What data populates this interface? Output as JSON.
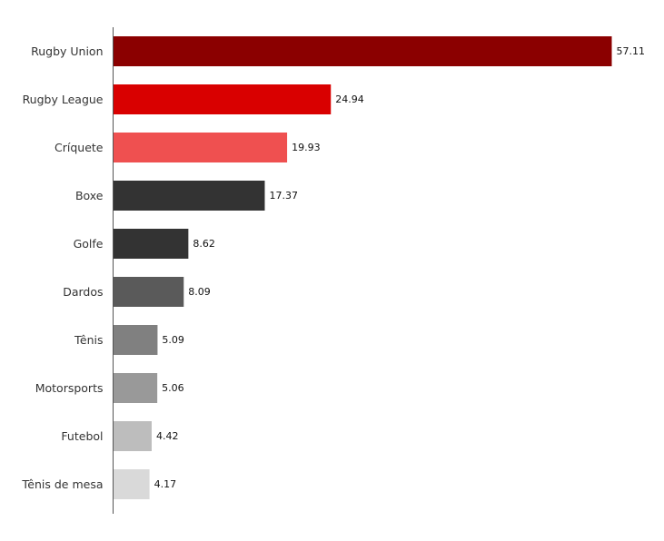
{
  "chart_data": {
    "type": "bar",
    "orientation": "horizontal",
    "title": "",
    "xlabel": "",
    "ylabel": "",
    "categories": [
      "Rugby Union",
      "Rugby League",
      "Críquete",
      "Boxe",
      "Golfe",
      "Dardos",
      "Tênis",
      "Motorsports",
      "Futebol",
      "Tênis de mesa"
    ],
    "values": [
      57.11,
      24.94,
      19.93,
      17.37,
      8.62,
      8.09,
      5.09,
      5.06,
      4.42,
      4.17
    ],
    "value_labels": [
      "57.11",
      "24.94",
      "19.93",
      "17.37",
      "8.62",
      "8.09",
      "5.09",
      "5.06",
      "4.42",
      "4.17"
    ],
    "bar_colors": [
      "#8b0000",
      "#d90000",
      "#ef5050",
      "#333333",
      "#333333",
      "#5a5a5a",
      "#808080",
      "#999999",
      "#bdbdbd",
      "#d9d9d9"
    ],
    "axis_color": "#555555",
    "xlim": [
      0,
      57.11
    ],
    "grid": false,
    "legend": "none"
  }
}
